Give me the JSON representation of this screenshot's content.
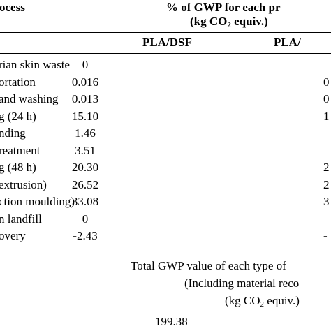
{
  "header": {
    "process_label": "ocess",
    "gwp_heading": "% of GWP for each pr",
    "unit_pre": "(kg CO",
    "unit_sub": "2",
    "unit_post": " equiv.)",
    "col1": "PLA/DSF",
    "col2": "PLA/"
  },
  "rows": [
    {
      "process": "rian skin waste",
      "col1": "0",
      "col2": ""
    },
    {
      "process": "ortation",
      "col1": "0.016",
      "col2": "0"
    },
    {
      "process": "and washing",
      "col1": "0.013",
      "col2": "0"
    },
    {
      "process": "g (24 h)",
      "col1": "15.10",
      "col2": "1"
    },
    {
      "process": "nding",
      "col1": "1.46",
      "col2": ""
    },
    {
      "process": "reatment",
      "col1": "3.51",
      "col2": ""
    },
    {
      "process": "g (48 h)",
      "col1": "20.30",
      "col2": "2"
    },
    {
      "process": "extrusion)",
      "col1": "26.52",
      "col2": "2"
    },
    {
      "process": "ction moulding)",
      "col1": "33.08",
      "col2": "3"
    },
    {
      "process": "n landfill",
      "col1": "0",
      "col2": ""
    },
    {
      "process": "overy",
      "col1": "-2.43",
      "col2": "-"
    }
  ],
  "total": {
    "line1": "Total GWP value of each type of",
    "line2": "(Including material reco",
    "unit_pre": "(kg CO",
    "unit_sub": "2",
    "unit_post": " equiv.)",
    "value": "199.38"
  }
}
